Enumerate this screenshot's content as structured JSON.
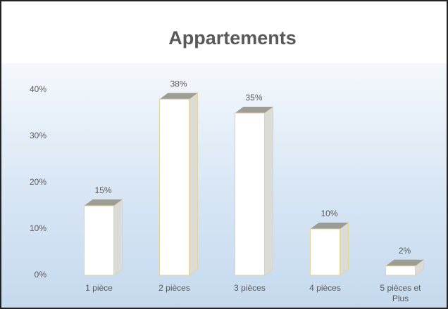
{
  "chart_data": {
    "type": "bar3d",
    "title": "Appartements",
    "categories": [
      "1 pièce",
      "2 pièces",
      "3 pièces",
      "4 pièces",
      "5 pièces et Plus"
    ],
    "values": [
      15,
      38,
      35,
      10,
      2
    ],
    "value_labels": [
      "15%",
      "38%",
      "35%",
      "10%",
      "2%"
    ],
    "color": "#ffffff",
    "ylim": [
      0,
      40
    ],
    "yticks": [
      {
        "value": 0,
        "label": "0%"
      },
      {
        "value": 10,
        "label": "10%"
      },
      {
        "value": 20,
        "label": "20%"
      },
      {
        "value": 30,
        "label": "30%"
      },
      {
        "value": 40,
        "label": "40%"
      }
    ],
    "grid": false
  }
}
